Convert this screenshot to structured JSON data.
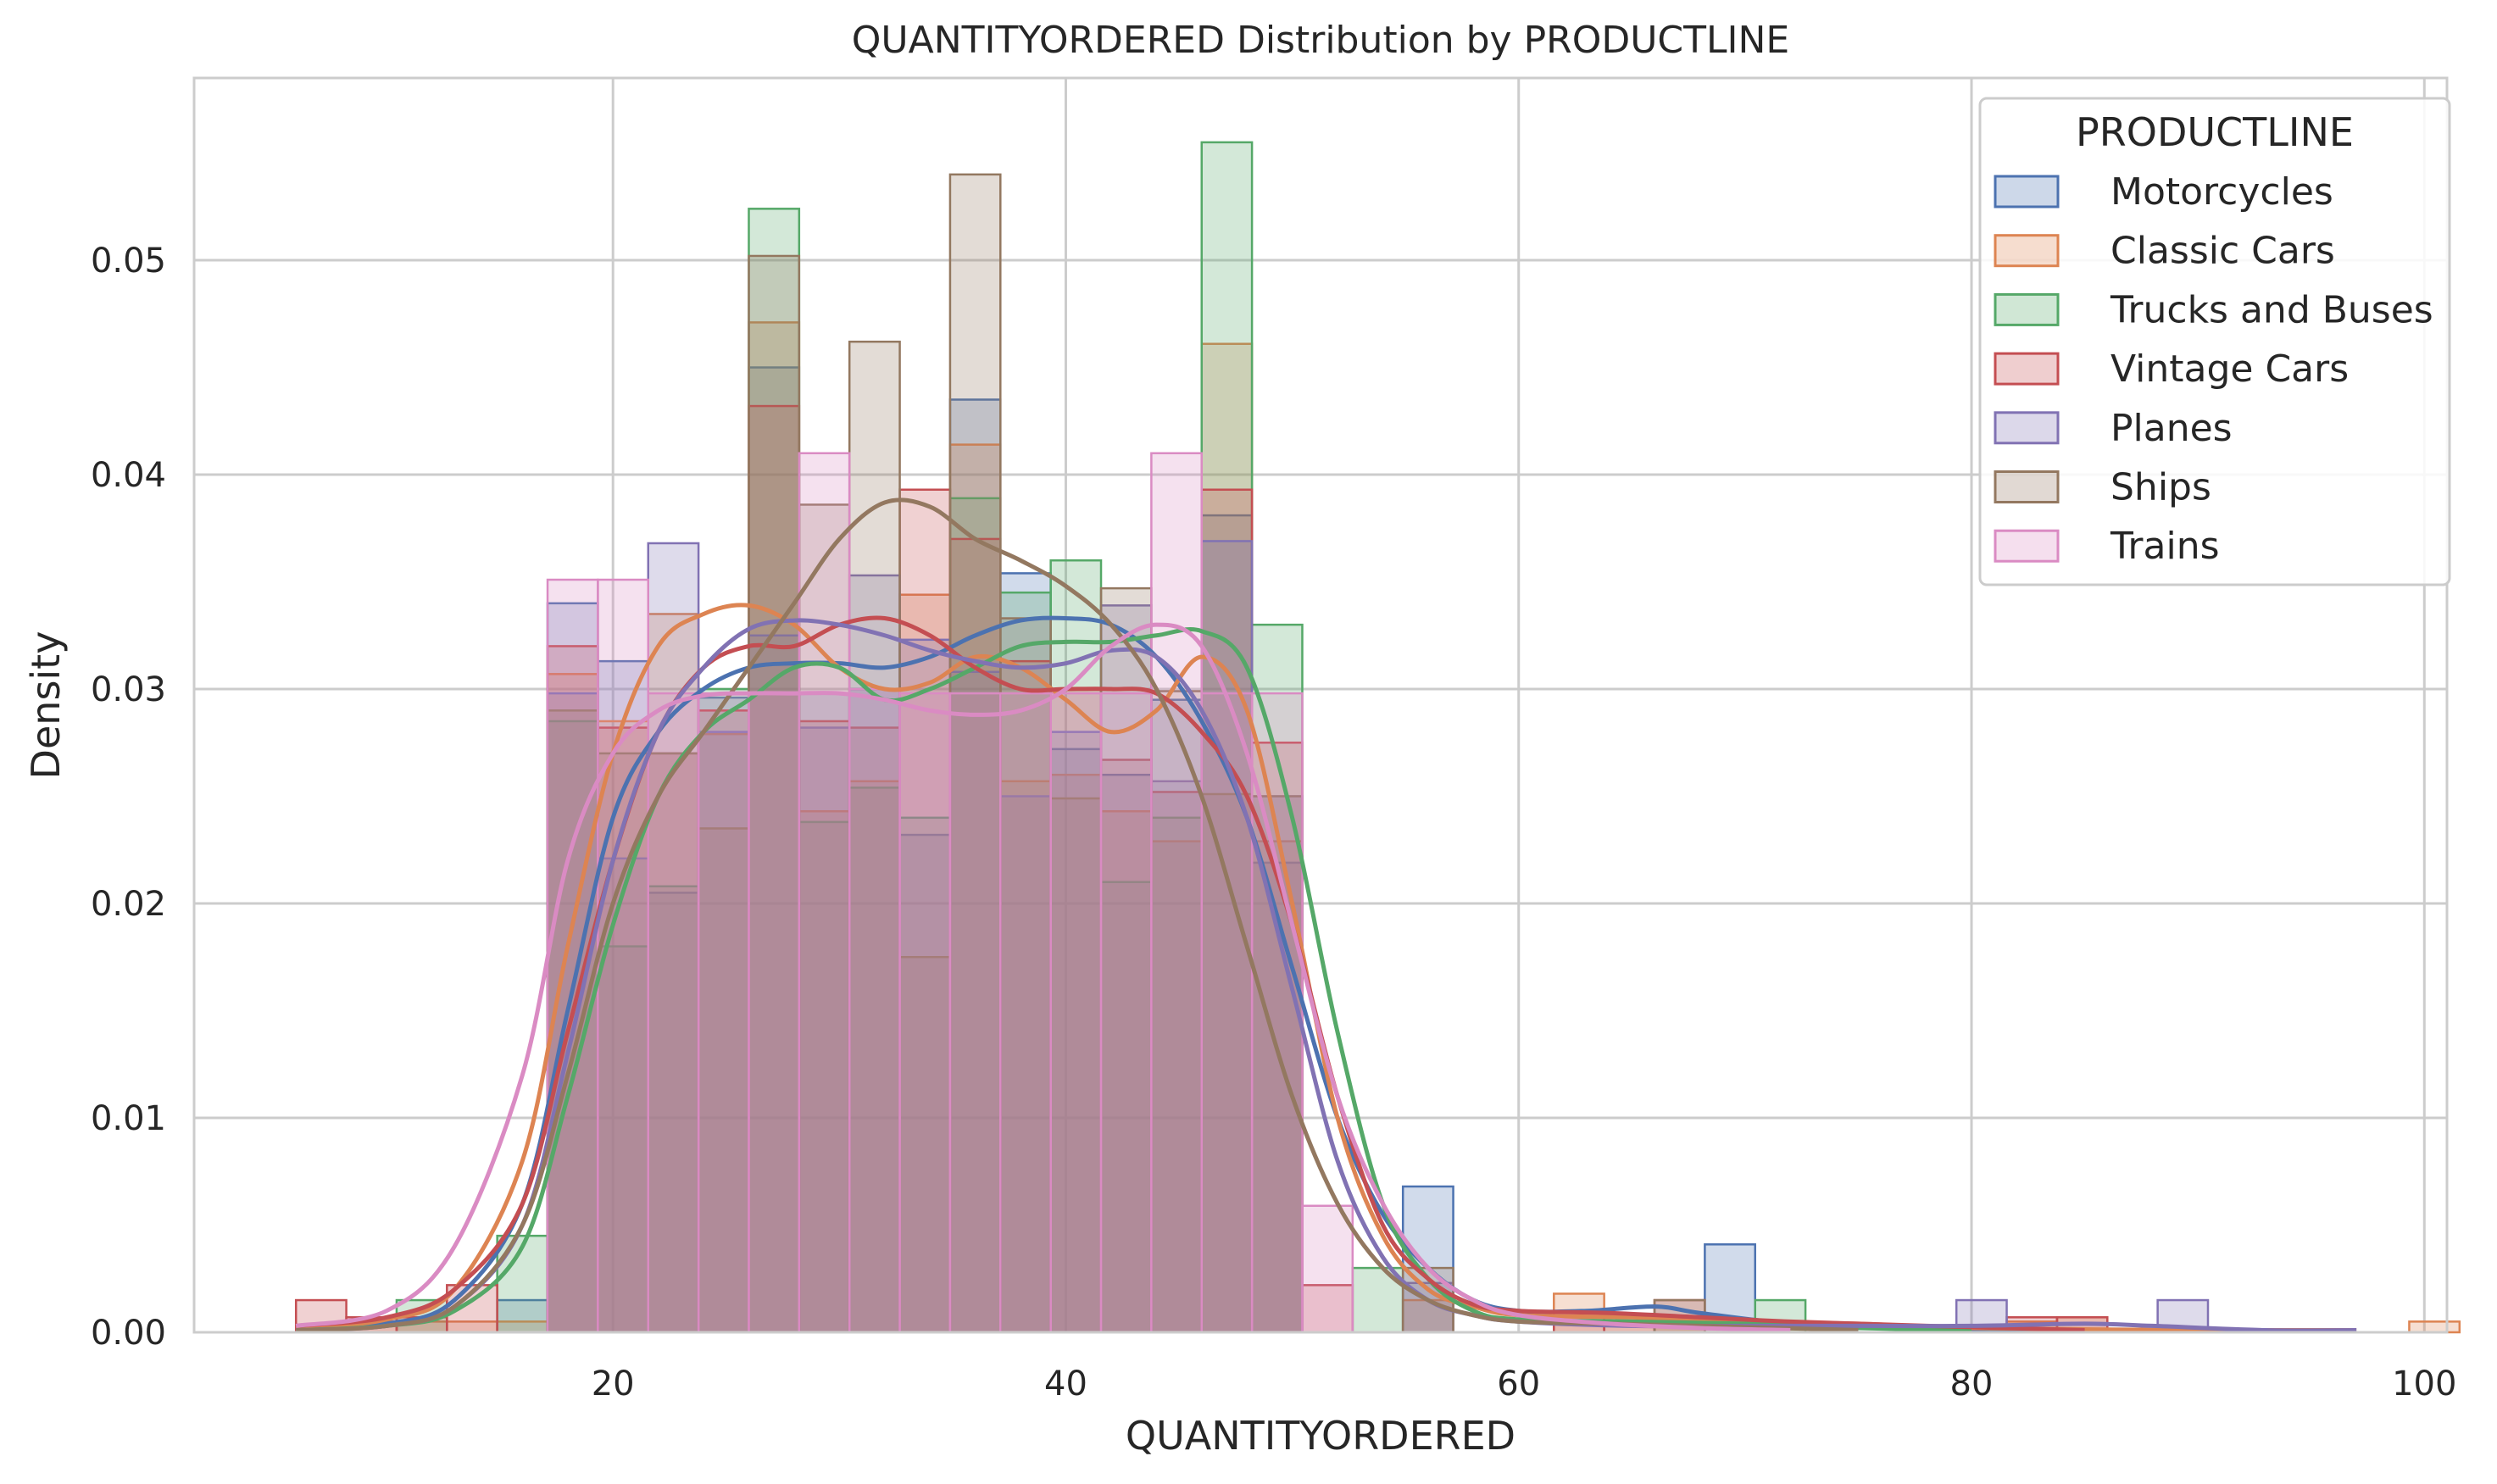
{
  "chart_data": {
    "type": "histogram",
    "title": "QUANTITYORDERED Distribution by PRODUCTLINE",
    "xlabel": "QUANTITYORDERED",
    "ylabel": "Density",
    "xlim": [
      1.5,
      101
    ],
    "ylim": [
      0,
      0.0585
    ],
    "xticks": [
      20,
      40,
      60,
      80,
      100
    ],
    "yticks": [
      0.0,
      0.01,
      0.02,
      0.03,
      0.04,
      0.05
    ],
    "ytick_labels": [
      "0.00",
      "0.01",
      "0.02",
      "0.03",
      "0.04",
      "0.05"
    ],
    "grid": true,
    "legend": {
      "title": "PRODUCTLINE",
      "placement": "top-right"
    },
    "bin_start": 6,
    "bin_width": 2.2222,
    "series": [
      {
        "name": "Motorcycles",
        "color": "#4c72b0",
        "densities": [
          0,
          0,
          0,
          0,
          0.0015,
          0.034,
          0.0313,
          0.0205,
          0.0296,
          0.045,
          0.0298,
          0.03,
          0.0232,
          0.0435,
          0.0354,
          0.0272,
          0.026,
          0.0295,
          0.0381,
          0.0219,
          0,
          0,
          0.0068,
          0,
          0,
          0,
          0,
          0,
          0.0041,
          0,
          0,
          0,
          0,
          0,
          0,
          0,
          0,
          0,
          0,
          0,
          0,
          0
        ],
        "kde": [
          [
            6,
            0.0002
          ],
          [
            10,
            0.0004
          ],
          [
            13,
            0.0015
          ],
          [
            16,
            0.006
          ],
          [
            18,
            0.015
          ],
          [
            20,
            0.024
          ],
          [
            22,
            0.028
          ],
          [
            24,
            0.03
          ],
          [
            26,
            0.031
          ],
          [
            28,
            0.0312
          ],
          [
            30,
            0.0312
          ],
          [
            32,
            0.031
          ],
          [
            34,
            0.0315
          ],
          [
            36,
            0.0325
          ],
          [
            38,
            0.0332
          ],
          [
            40,
            0.0333
          ],
          [
            42,
            0.033
          ],
          [
            44,
            0.0315
          ],
          [
            46,
            0.0285
          ],
          [
            48,
            0.024
          ],
          [
            50,
            0.017
          ],
          [
            52,
            0.01
          ],
          [
            54,
            0.0055
          ],
          [
            56,
            0.003
          ],
          [
            58,
            0.0015
          ],
          [
            60,
            0.001
          ],
          [
            63,
            0.001
          ],
          [
            66,
            0.0012
          ],
          [
            68,
            0.0009
          ],
          [
            72,
            0.0004
          ],
          [
            76,
            0.0002
          ],
          [
            80,
            0.0001
          ],
          [
            85,
            0.0001
          ]
        ]
      },
      {
        "name": "Classic Cars",
        "color": "#dd8452",
        "densities": [
          0,
          0.0005,
          0.0005,
          0.0005,
          0.0005,
          0.0307,
          0.0285,
          0.0335,
          0.0279,
          0.0471,
          0.0243,
          0.0257,
          0.0344,
          0.0414,
          0.0257,
          0.026,
          0.0243,
          0.0229,
          0.0461,
          0.0229,
          0,
          0,
          0.0015,
          0,
          0,
          0.0018,
          0.0007,
          0.0005,
          0.0005,
          0.0005,
          0,
          0,
          0,
          0,
          0.0005,
          0.0007,
          0,
          0,
          0,
          0,
          0,
          0,
          0.0005
        ],
        "kde": [
          [
            6,
            0.0002
          ],
          [
            10,
            0.0006
          ],
          [
            13,
            0.002
          ],
          [
            16,
            0.008
          ],
          [
            18,
            0.018
          ],
          [
            20,
            0.027
          ],
          [
            22,
            0.032
          ],
          [
            24,
            0.0335
          ],
          [
            26,
            0.0339
          ],
          [
            28,
            0.033
          ],
          [
            30,
            0.031
          ],
          [
            32,
            0.03
          ],
          [
            34,
            0.0303
          ],
          [
            36,
            0.0315
          ],
          [
            38,
            0.031
          ],
          [
            40,
            0.0295
          ],
          [
            42,
            0.028
          ],
          [
            44,
            0.029
          ],
          [
            46,
            0.0315
          ],
          [
            48,
            0.029
          ],
          [
            50,
            0.02
          ],
          [
            52,
            0.01
          ],
          [
            54,
            0.0045
          ],
          [
            56,
            0.002
          ],
          [
            58,
            0.0012
          ],
          [
            60,
            0.0008
          ],
          [
            65,
            0.0007
          ],
          [
            70,
            0.0005
          ],
          [
            75,
            0.0004
          ],
          [
            80,
            0.0002
          ],
          [
            90,
            0.0001
          ],
          [
            97,
            0.0001
          ]
        ]
      },
      {
        "name": "Trucks and Buses",
        "color": "#55a868",
        "densities": [
          0,
          0,
          0.0015,
          0,
          0.0045,
          0.0285,
          0.018,
          0.0208,
          0.03,
          0.0524,
          0.0238,
          0.0254,
          0.024,
          0.0389,
          0.0345,
          0.036,
          0.021,
          0.024,
          0.0555,
          0.033,
          0,
          0.003,
          0,
          0,
          0,
          0,
          0,
          0,
          0,
          0.0015,
          0,
          0,
          0,
          0,
          0,
          0,
          0,
          0,
          0,
          0,
          0,
          0
        ],
        "kde": [
          [
            6,
            0.0001
          ],
          [
            10,
            0.0003
          ],
          [
            13,
            0.001
          ],
          [
            16,
            0.004
          ],
          [
            18,
            0.011
          ],
          [
            20,
            0.019
          ],
          [
            22,
            0.025
          ],
          [
            24,
            0.028
          ],
          [
            26,
            0.0295
          ],
          [
            28,
            0.031
          ],
          [
            30,
            0.031
          ],
          [
            32,
            0.0295
          ],
          [
            34,
            0.03
          ],
          [
            36,
            0.031
          ],
          [
            38,
            0.032
          ],
          [
            40,
            0.0322
          ],
          [
            42,
            0.0322
          ],
          [
            44,
            0.0325
          ],
          [
            46,
            0.0327
          ],
          [
            48,
            0.031
          ],
          [
            50,
            0.024
          ],
          [
            52,
            0.014
          ],
          [
            54,
            0.006
          ],
          [
            56,
            0.0025
          ],
          [
            58,
            0.001
          ],
          [
            60,
            0.0006
          ],
          [
            65,
            0.0005
          ],
          [
            70,
            0.0004
          ],
          [
            75,
            0.0002
          ],
          [
            80,
            0.0001
          ]
        ]
      },
      {
        "name": "Vintage Cars",
        "color": "#c44e52",
        "densities": [
          0.0015,
          0.0007,
          0.0007,
          0.0022,
          0,
          0.032,
          0.0282,
          0.027,
          0.029,
          0.0432,
          0.0285,
          0.0282,
          0.0393,
          0.037,
          0.0313,
          0.03,
          0.0267,
          0.0252,
          0.0393,
          0.0275,
          0.0022,
          0,
          0,
          0,
          0,
          0.0007,
          0.0007,
          0.0015,
          0,
          0,
          0,
          0,
          0,
          0,
          0.0007,
          0.0007,
          0,
          0,
          0,
          0,
          0,
          0
        ],
        "kde": [
          [
            6,
            0.0003
          ],
          [
            10,
            0.0007
          ],
          [
            13,
            0.002
          ],
          [
            16,
            0.006
          ],
          [
            18,
            0.014
          ],
          [
            20,
            0.022
          ],
          [
            22,
            0.028
          ],
          [
            24,
            0.031
          ],
          [
            26,
            0.032
          ],
          [
            28,
            0.032
          ],
          [
            30,
            0.033
          ],
          [
            32,
            0.0333
          ],
          [
            34,
            0.0325
          ],
          [
            36,
            0.031
          ],
          [
            38,
            0.03
          ],
          [
            40,
            0.03
          ],
          [
            42,
            0.03
          ],
          [
            44,
            0.0298
          ],
          [
            46,
            0.028
          ],
          [
            48,
            0.025
          ],
          [
            50,
            0.019
          ],
          [
            52,
            0.011
          ],
          [
            54,
            0.005
          ],
          [
            56,
            0.0025
          ],
          [
            58,
            0.0013
          ],
          [
            60,
            0.001
          ],
          [
            64,
            0.0009
          ],
          [
            68,
            0.0007
          ],
          [
            72,
            0.0005
          ],
          [
            78,
            0.0003
          ],
          [
            85,
            0.0001
          ]
        ]
      },
      {
        "name": "Planes",
        "color": "#8172b3",
        "densities": [
          0,
          0,
          0,
          0,
          0,
          0.0298,
          0.0221,
          0.0368,
          0.028,
          0.0325,
          0.0282,
          0.0353,
          0.0323,
          0.0308,
          0.025,
          0.028,
          0.0339,
          0.0257,
          0.0369,
          0.025,
          0,
          0,
          0.0023,
          0,
          0,
          0,
          0,
          0,
          0,
          0,
          0,
          0,
          0,
          0.0015,
          0,
          0,
          0,
          0.0015,
          0,
          0,
          0,
          0,
          0
        ],
        "kde": [
          [
            6,
            0.0001
          ],
          [
            10,
            0.0003
          ],
          [
            13,
            0.0012
          ],
          [
            16,
            0.005
          ],
          [
            18,
            0.013
          ],
          [
            20,
            0.022
          ],
          [
            22,
            0.028
          ],
          [
            24,
            0.031
          ],
          [
            26,
            0.0328
          ],
          [
            28,
            0.0332
          ],
          [
            30,
            0.033
          ],
          [
            32,
            0.0325
          ],
          [
            34,
            0.0318
          ],
          [
            36,
            0.0313
          ],
          [
            38,
            0.031
          ],
          [
            40,
            0.0312
          ],
          [
            42,
            0.0318
          ],
          [
            44,
            0.0315
          ],
          [
            46,
            0.029
          ],
          [
            48,
            0.024
          ],
          [
            50,
            0.016
          ],
          [
            52,
            0.008
          ],
          [
            54,
            0.0035
          ],
          [
            56,
            0.0015
          ],
          [
            58,
            0.0008
          ],
          [
            60,
            0.0005
          ],
          [
            65,
            0.0003
          ],
          [
            70,
            0.0003
          ],
          [
            75,
            0.0003
          ],
          [
            80,
            0.0003
          ],
          [
            85,
            0.0004
          ],
          [
            88,
            0.0003
          ],
          [
            93,
            0.0001
          ],
          [
            97,
            0.0001
          ]
        ]
      },
      {
        "name": "Ships",
        "color": "#937860",
        "densities": [
          0,
          0,
          0,
          0,
          0,
          0.029,
          0.027,
          0.027,
          0.0235,
          0.0502,
          0.0386,
          0.0462,
          0.0175,
          0.054,
          0.0333,
          0.0249,
          0.0347,
          0.0299,
          0.0251,
          0.025,
          0,
          0,
          0.003,
          0,
          0,
          0,
          0,
          0.0015,
          0,
          0,
          0,
          0,
          0,
          0,
          0,
          0,
          0,
          0,
          0,
          0,
          0,
          0
        ],
        "kde": [
          [
            6,
            0.0001
          ],
          [
            10,
            0.0003
          ],
          [
            13,
            0.0012
          ],
          [
            16,
            0.005
          ],
          [
            18,
            0.012
          ],
          [
            20,
            0.02
          ],
          [
            22,
            0.025
          ],
          [
            24,
            0.028
          ],
          [
            26,
            0.031
          ],
          [
            28,
            0.034
          ],
          [
            30,
            0.037
          ],
          [
            32,
            0.0387
          ],
          [
            34,
            0.0385
          ],
          [
            36,
            0.037
          ],
          [
            38,
            0.036
          ],
          [
            40,
            0.0348
          ],
          [
            42,
            0.033
          ],
          [
            44,
            0.03
          ],
          [
            46,
            0.025
          ],
          [
            48,
            0.018
          ],
          [
            50,
            0.011
          ],
          [
            52,
            0.006
          ],
          [
            54,
            0.003
          ],
          [
            56,
            0.0015
          ],
          [
            58,
            0.0008
          ],
          [
            60,
            0.0005
          ],
          [
            64,
            0.0004
          ],
          [
            68,
            0.0003
          ],
          [
            75,
            0.0001
          ]
        ]
      },
      {
        "name": "Trains",
        "color": "#da8bc3",
        "densities": [
          0,
          0,
          0,
          0,
          0,
          0.0351,
          0.0351,
          0.0298,
          0.0298,
          0.0298,
          0.041,
          0.03,
          0.0298,
          0.0298,
          0.0298,
          0.0298,
          0.0298,
          0.041,
          0.0298,
          0.0298,
          0.0059,
          0,
          0,
          0,
          0,
          0,
          0,
          0,
          0,
          0,
          0,
          0,
          0,
          0,
          0,
          0,
          0,
          0,
          0,
          0,
          0,
          0
        ],
        "kde": [
          [
            6,
            0.0003
          ],
          [
            10,
            0.001
          ],
          [
            13,
            0.004
          ],
          [
            16,
            0.012
          ],
          [
            18,
            0.022
          ],
          [
            20,
            0.027
          ],
          [
            22,
            0.029
          ],
          [
            24,
            0.0297
          ],
          [
            26,
            0.0298
          ],
          [
            28,
            0.0298
          ],
          [
            30,
            0.0298
          ],
          [
            32,
            0.0295
          ],
          [
            34,
            0.029
          ],
          [
            36,
            0.0288
          ],
          [
            38,
            0.029
          ],
          [
            40,
            0.03
          ],
          [
            42,
            0.032
          ],
          [
            44,
            0.033
          ],
          [
            46,
            0.032
          ],
          [
            48,
            0.027
          ],
          [
            50,
            0.019
          ],
          [
            52,
            0.011
          ],
          [
            54,
            0.006
          ],
          [
            56,
            0.003
          ],
          [
            58,
            0.0015
          ],
          [
            60,
            0.0008
          ],
          [
            64,
            0.0004
          ],
          [
            68,
            0.0002
          ],
          [
            72,
            0.0001
          ]
        ]
      }
    ]
  }
}
